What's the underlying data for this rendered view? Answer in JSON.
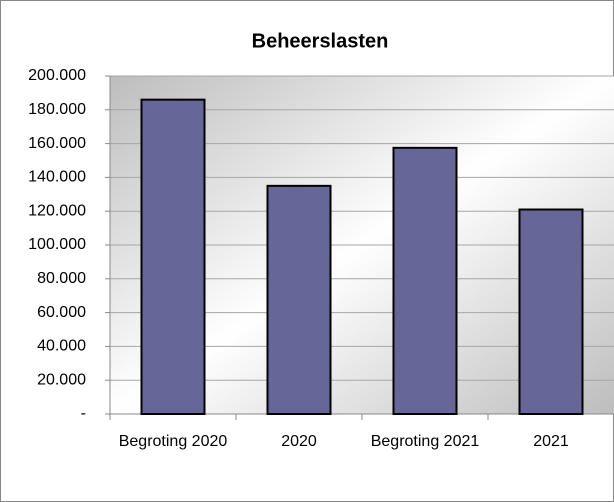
{
  "chart_data": {
    "type": "bar",
    "title": "Beheerslasten",
    "categories": [
      "Begroting 2020",
      "2020",
      "Begroting 2021",
      "2021"
    ],
    "values": [
      186000,
      135000,
      157500,
      121000
    ],
    "color": "#666699",
    "ylim": [
      0,
      200000
    ],
    "yticks": [
      {
        "value": 0,
        "label": "-"
      },
      {
        "value": 20000,
        "label": "20.000"
      },
      {
        "value": 40000,
        "label": "40.000"
      },
      {
        "value": 60000,
        "label": "60.000"
      },
      {
        "value": 80000,
        "label": "80.000"
      },
      {
        "value": 100000,
        "label": "100.000"
      },
      {
        "value": 120000,
        "label": "120.000"
      },
      {
        "value": 140000,
        "label": "140.000"
      },
      {
        "value": 160000,
        "label": "160.000"
      },
      {
        "value": 180000,
        "label": "180.000"
      },
      {
        "value": 200000,
        "label": "200.000"
      }
    ],
    "grid": true
  }
}
